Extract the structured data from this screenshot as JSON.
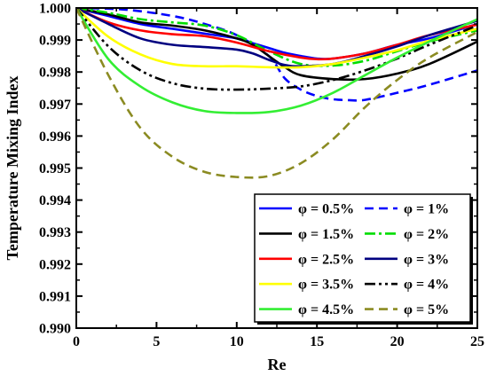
{
  "chart_data": {
    "type": "line",
    "xlabel": "Re",
    "ylabel": "Temperature Mixing Index",
    "xlim": [
      0,
      25
    ],
    "ylim": [
      0.99,
      1.0
    ],
    "xticks": [
      "0",
      "5",
      "10",
      "15",
      "20",
      "25"
    ],
    "yticks": [
      "0.990",
      "0.991",
      "0.992",
      "0.993",
      "0.994",
      "0.995",
      "0.996",
      "0.997",
      "0.998",
      "0.999",
      "1.000"
    ],
    "grid": false,
    "legend_position": "bottom-right",
    "series": [
      {
        "name": "φ = 0.5%",
        "color": "#0000ff",
        "dash": "solid",
        "points": [
          [
            0,
            1.0
          ],
          [
            2,
            0.99975
          ],
          [
            4,
            0.9995
          ],
          [
            6,
            0.99935
          ],
          [
            8,
            0.9992
          ],
          [
            10,
            0.99905
          ],
          [
            11,
            0.9989
          ],
          [
            12,
            0.99875
          ],
          [
            13,
            0.9986
          ],
          [
            14,
            0.9985
          ],
          [
            15,
            0.99842
          ],
          [
            16,
            0.99842
          ],
          [
            18,
            0.99858
          ],
          [
            20,
            0.99885
          ],
          [
            22,
            0.99905
          ],
          [
            25,
            0.9995
          ]
        ]
      },
      {
        "name": "φ = 1%",
        "color": "#0000ff",
        "dash": "dashed",
        "points": [
          [
            0,
            1.0
          ],
          [
            3,
            0.99995
          ],
          [
            6,
            0.99975
          ],
          [
            8,
            0.9995
          ],
          [
            10,
            0.99915
          ],
          [
            12,
            0.9985
          ],
          [
            13,
            0.9978
          ],
          [
            14,
            0.99745
          ],
          [
            15,
            0.99725
          ],
          [
            16,
            0.99715
          ],
          [
            17,
            0.99712
          ],
          [
            18,
            0.99713
          ],
          [
            20,
            0.99735
          ],
          [
            22,
            0.9976
          ],
          [
            25,
            0.99805
          ]
        ]
      },
      {
        "name": "φ = 1.5%",
        "color": "#000000",
        "dash": "solid",
        "points": [
          [
            0,
            1.0
          ],
          [
            2,
            0.9998
          ],
          [
            4,
            0.99955
          ],
          [
            6,
            0.99945
          ],
          [
            8,
            0.9993
          ],
          [
            10,
            0.99905
          ],
          [
            11,
            0.99885
          ],
          [
            12,
            0.9985
          ],
          [
            13,
            0.99815
          ],
          [
            14,
            0.9979
          ],
          [
            16,
            0.99778
          ],
          [
            18,
            0.99778
          ],
          [
            20,
            0.99795
          ],
          [
            22,
            0.99825
          ],
          [
            25,
            0.99895
          ]
        ]
      },
      {
        "name": "φ = 2%",
        "color": "#00dd00",
        "dash": "dashdot",
        "points": [
          [
            0,
            1.0
          ],
          [
            2,
            0.99985
          ],
          [
            4,
            0.99965
          ],
          [
            6,
            0.99955
          ],
          [
            8,
            0.99945
          ],
          [
            10,
            0.99915
          ],
          [
            12,
            0.99865
          ],
          [
            14,
            0.99825
          ],
          [
            16,
            0.9982
          ],
          [
            18,
            0.99835
          ],
          [
            20,
            0.99865
          ],
          [
            22,
            0.99895
          ],
          [
            25,
            0.9993
          ]
        ]
      },
      {
        "name": "φ = 2.5%",
        "color": "#ff0000",
        "dash": "solid",
        "points": [
          [
            0,
            1.0
          ],
          [
            2,
            0.99955
          ],
          [
            4,
            0.9993
          ],
          [
            6,
            0.99918
          ],
          [
            8,
            0.99912
          ],
          [
            10,
            0.99892
          ],
          [
            12,
            0.99865
          ],
          [
            14,
            0.99845
          ],
          [
            15,
            0.9984
          ],
          [
            16,
            0.99842
          ],
          [
            18,
            0.99858
          ],
          [
            20,
            0.99885
          ],
          [
            22,
            0.99915
          ],
          [
            25,
            0.99948
          ]
        ]
      },
      {
        "name": "φ = 3%",
        "color": "#000080",
        "dash": "solid",
        "points": [
          [
            0,
            1.0
          ],
          [
            2,
            0.9995
          ],
          [
            4,
            0.99905
          ],
          [
            6,
            0.99885
          ],
          [
            8,
            0.99878
          ],
          [
            10,
            0.9987
          ],
          [
            11,
            0.99858
          ],
          [
            12,
            0.99838
          ],
          [
            13,
            0.99822
          ],
          [
            14,
            0.99818
          ],
          [
            16,
            0.99825
          ],
          [
            18,
            0.9985
          ],
          [
            20,
            0.9988
          ],
          [
            22,
            0.99915
          ],
          [
            25,
            0.9996
          ]
        ]
      },
      {
        "name": "φ = 3.5%",
        "color": "#ffff00",
        "dash": "solid",
        "points": [
          [
            0,
            1.0
          ],
          [
            2,
            0.9991
          ],
          [
            4,
            0.99855
          ],
          [
            6,
            0.99825
          ],
          [
            8,
            0.99818
          ],
          [
            10,
            0.99818
          ],
          [
            12,
            0.99815
          ],
          [
            14,
            0.99815
          ],
          [
            16,
            0.99825
          ],
          [
            18,
            0.99845
          ],
          [
            20,
            0.99868
          ],
          [
            22,
            0.99898
          ],
          [
            25,
            0.99935
          ]
        ]
      },
      {
        "name": "φ = 4%",
        "color": "#000000",
        "dash": "dashdotdot",
        "points": [
          [
            0,
            1.0
          ],
          [
            2,
            0.9988
          ],
          [
            4,
            0.99805
          ],
          [
            6,
            0.99765
          ],
          [
            8,
            0.99748
          ],
          [
            10,
            0.99745
          ],
          [
            12,
            0.99748
          ],
          [
            14,
            0.99755
          ],
          [
            16,
            0.99775
          ],
          [
            18,
            0.99805
          ],
          [
            20,
            0.99842
          ],
          [
            22,
            0.99885
          ],
          [
            25,
            0.99945
          ]
        ]
      },
      {
        "name": "φ = 4.5%",
        "color": "#33ee33",
        "dash": "solid",
        "points": [
          [
            0,
            1.0
          ],
          [
            2,
            0.9984
          ],
          [
            4,
            0.99755
          ],
          [
            6,
            0.99705
          ],
          [
            8,
            0.99678
          ],
          [
            10,
            0.99672
          ],
          [
            12,
            0.99675
          ],
          [
            14,
            0.99695
          ],
          [
            16,
            0.99735
          ],
          [
            18,
            0.9979
          ],
          [
            20,
            0.99845
          ],
          [
            22,
            0.99895
          ],
          [
            25,
            0.99965
          ]
        ]
      },
      {
        "name": "φ = 5%",
        "color": "#8b8b22",
        "dash": "dashed",
        "points": [
          [
            0,
            1.0
          ],
          [
            2,
            0.9979
          ],
          [
            4,
            0.99625
          ],
          [
            6,
            0.99535
          ],
          [
            8,
            0.99488
          ],
          [
            10,
            0.99472
          ],
          [
            12,
            0.99475
          ],
          [
            14,
            0.99515
          ],
          [
            16,
            0.9959
          ],
          [
            18,
            0.9969
          ],
          [
            20,
            0.99775
          ],
          [
            22,
            0.99845
          ],
          [
            25,
            0.99925
          ]
        ]
      }
    ]
  }
}
